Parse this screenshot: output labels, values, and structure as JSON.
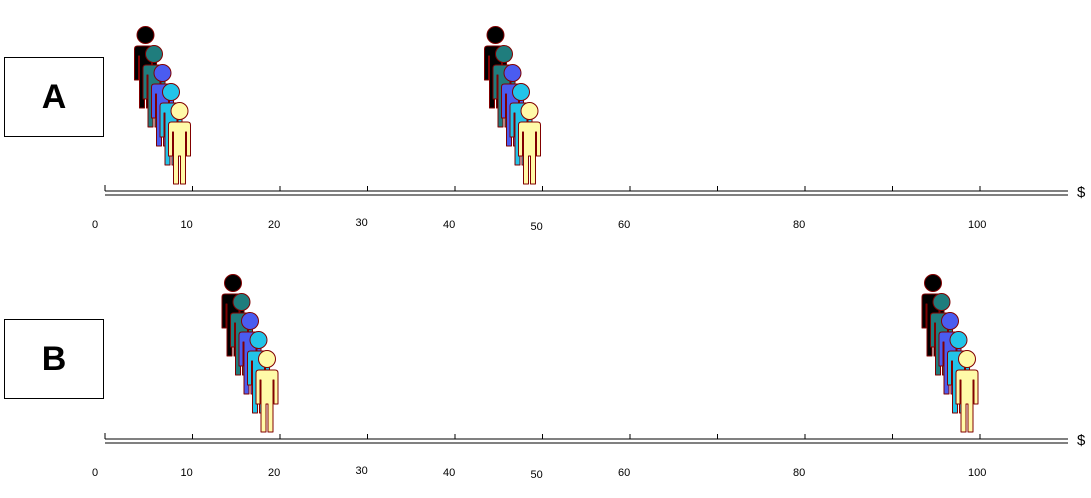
{
  "panels": [
    {
      "label": "A",
      "currency_symbol": "$",
      "groups": [
        {
          "value": 10
        },
        {
          "value": 50
        }
      ]
    },
    {
      "label": "B",
      "currency_symbol": "$",
      "groups": [
        {
          "value": 20
        },
        {
          "value": 100
        }
      ]
    }
  ],
  "axis": {
    "tick_labels": [
      "0",
      "10",
      "20",
      "30",
      "40",
      "50",
      "60",
      "80",
      "100"
    ]
  },
  "figure_colors": [
    "#000000",
    "#1f7d7d",
    "#4a5cf0",
    "#22c4e8",
    "#fffaa8"
  ],
  "figure_outline": "#800000"
}
